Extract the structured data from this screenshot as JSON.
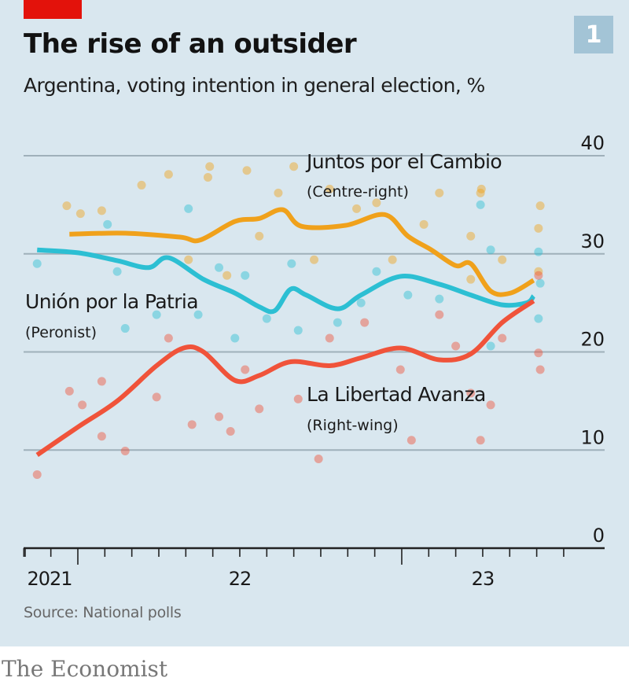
{
  "header": {
    "title": "The rise of an outsider",
    "subtitle": "Argentina, voting intention in general election, %",
    "badge": "1"
  },
  "footer": {
    "source": "Source: National polls",
    "brand": "The Economist"
  },
  "colors": {
    "background": "#d9e7ef",
    "accent_bar": "#e3120b",
    "badge": "#a3c4d6",
    "juntos": "#f0a11b",
    "union": "#2cbfd3",
    "libertad": "#f0533a"
  },
  "chart_data": {
    "type": "line",
    "title": "The rise of an outsider",
    "subtitle": "Argentina, voting intention in general election, %",
    "xlabel": "",
    "ylabel": "",
    "ylim": [
      0,
      40
    ],
    "yticks": [
      0,
      10,
      20,
      30,
      40
    ],
    "xlim": [
      "2021-11-01",
      "2023-07-20"
    ],
    "xtick_labels": [
      {
        "label": "2021",
        "date": "2021-11-30"
      },
      {
        "label": "22",
        "date": "2022-07-01"
      },
      {
        "label": "23",
        "date": "2023-04-01"
      }
    ],
    "grid": true,
    "series": [
      {
        "name": "Juntos por el Cambio",
        "note": "(Centre-right)",
        "color": "#f0a11b",
        "line": [
          [
            "2021-12-22",
            32.0
          ],
          [
            "2022-02-24",
            32.1
          ],
          [
            "2022-04-25",
            31.7
          ],
          [
            "2022-05-17",
            31.4
          ],
          [
            "2022-06-26",
            33.3
          ],
          [
            "2022-07-23",
            33.6
          ],
          [
            "2022-08-19",
            34.5
          ],
          [
            "2022-09-10",
            32.8
          ],
          [
            "2022-10-29",
            32.9
          ],
          [
            "2022-12-12",
            34.0
          ],
          [
            "2023-01-08",
            31.8
          ],
          [
            "2023-02-04",
            30.4
          ],
          [
            "2023-03-01",
            28.8
          ],
          [
            "2023-03-18",
            29.0
          ],
          [
            "2023-04-10",
            26.2
          ],
          [
            "2023-05-02",
            26.0
          ],
          [
            "2023-05-28",
            27.3
          ]
        ],
        "polls": [
          [
            "2021-12-19",
            34.9
          ],
          [
            "2022-01-04",
            34.1
          ],
          [
            "2022-01-28",
            34.4
          ],
          [
            "2022-03-12",
            37.0
          ],
          [
            "2022-04-12",
            38.1
          ],
          [
            "2022-05-26",
            37.8
          ],
          [
            "2022-05-28",
            38.9
          ],
          [
            "2022-07-09",
            38.5
          ],
          [
            "2022-08-14",
            36.2
          ],
          [
            "2022-09-01",
            38.9
          ],
          [
            "2022-10-11",
            36.6
          ],
          [
            "2022-11-11",
            34.6
          ],
          [
            "2022-12-03",
            35.2
          ],
          [
            "2023-01-26",
            33.0
          ],
          [
            "2023-02-13",
            36.2
          ],
          [
            "2023-03-29",
            36.2
          ],
          [
            "2023-03-30",
            36.6
          ],
          [
            "2023-03-18",
            31.8
          ],
          [
            "2023-04-23",
            29.4
          ],
          [
            "2023-06-03",
            32.6
          ],
          [
            "2023-06-05",
            34.9
          ],
          [
            "2023-06-03",
            28.2
          ],
          [
            "2023-03-18",
            27.4
          ],
          [
            "2022-09-24",
            29.4
          ],
          [
            "2022-05-04",
            29.4
          ],
          [
            "2022-06-17",
            27.8
          ],
          [
            "2022-07-23",
            31.8
          ],
          [
            "2022-12-21",
            29.4
          ]
        ]
      },
      {
        "name": "Unión por la Patria",
        "note": "(Peronist)",
        "color": "#2cbfd3",
        "line": [
          [
            "2021-11-16",
            30.4
          ],
          [
            "2022-01-02",
            30.1
          ],
          [
            "2022-02-15",
            29.3
          ],
          [
            "2022-03-20",
            28.6
          ],
          [
            "2022-04-12",
            29.6
          ],
          [
            "2022-05-21",
            27.4
          ],
          [
            "2022-06-26",
            26.0
          ],
          [
            "2022-07-23",
            24.6
          ],
          [
            "2022-08-10",
            24.2
          ],
          [
            "2022-08-28",
            26.4
          ],
          [
            "2022-09-15",
            25.8
          ],
          [
            "2022-10-20",
            24.4
          ],
          [
            "2022-11-16",
            25.8
          ],
          [
            "2022-12-30",
            27.7
          ],
          [
            "2023-02-13",
            26.9
          ],
          [
            "2023-03-18",
            25.8
          ],
          [
            "2023-04-23",
            24.8
          ],
          [
            "2023-05-20",
            25.0
          ],
          [
            "2023-05-28",
            25.7
          ]
        ],
        "polls": [
          [
            "2021-11-16",
            29.0
          ],
          [
            "2022-02-15",
            28.2
          ],
          [
            "2022-02-04",
            33.0
          ],
          [
            "2022-05-04",
            34.6
          ],
          [
            "2022-06-08",
            28.6
          ],
          [
            "2022-07-07",
            27.8
          ],
          [
            "2022-06-26",
            21.4
          ],
          [
            "2022-05-15",
            23.8
          ],
          [
            "2022-08-01",
            23.4
          ],
          [
            "2022-09-06",
            22.2
          ],
          [
            "2022-10-20",
            23.0
          ],
          [
            "2022-11-16",
            25.0
          ],
          [
            "2023-01-08",
            25.8
          ],
          [
            "2023-02-13",
            25.4
          ],
          [
            "2023-03-29",
            35.0
          ],
          [
            "2023-04-10",
            30.4
          ],
          [
            "2023-04-10",
            20.6
          ],
          [
            "2023-06-03",
            30.2
          ],
          [
            "2023-06-05",
            27.0
          ],
          [
            "2023-06-03",
            23.4
          ],
          [
            "2022-03-29",
            23.8
          ],
          [
            "2022-08-29",
            29.0
          ],
          [
            "2022-12-03",
            28.2
          ],
          [
            "2022-02-24",
            22.4
          ]
        ]
      },
      {
        "name": "La Libertad Avanza",
        "note": "(Right-wing)",
        "color": "#f0533a",
        "line": [
          [
            "2021-11-16",
            9.5
          ],
          [
            "2022-01-02",
            12.4
          ],
          [
            "2022-02-15",
            15.0
          ],
          [
            "2022-03-29",
            18.6
          ],
          [
            "2022-04-29",
            20.4
          ],
          [
            "2022-05-21",
            20.0
          ],
          [
            "2022-06-26",
            17.1
          ],
          [
            "2022-07-23",
            17.6
          ],
          [
            "2022-08-28",
            19.0
          ],
          [
            "2022-10-11",
            18.6
          ],
          [
            "2022-11-16",
            19.4
          ],
          [
            "2022-12-30",
            20.4
          ],
          [
            "2023-02-13",
            19.2
          ],
          [
            "2023-03-18",
            19.8
          ],
          [
            "2023-04-23",
            23.0
          ],
          [
            "2023-05-28",
            25.2
          ]
        ],
        "polls": [
          [
            "2021-11-16",
            7.5
          ],
          [
            "2021-12-22",
            16.0
          ],
          [
            "2022-01-06",
            14.6
          ],
          [
            "2022-01-28",
            17.0
          ],
          [
            "2022-01-28",
            11.4
          ],
          [
            "2022-02-24",
            9.9
          ],
          [
            "2022-03-29",
            15.4
          ],
          [
            "2022-04-12",
            21.4
          ],
          [
            "2022-05-08",
            12.6
          ],
          [
            "2022-06-08",
            13.4
          ],
          [
            "2022-06-21",
            11.9
          ],
          [
            "2022-07-07",
            18.2
          ],
          [
            "2022-07-23",
            14.2
          ],
          [
            "2022-09-06",
            15.2
          ],
          [
            "2022-09-29",
            9.1
          ],
          [
            "2022-10-11",
            21.4
          ],
          [
            "2022-11-20",
            23.0
          ],
          [
            "2022-12-30",
            18.2
          ],
          [
            "2023-01-12",
            11.0
          ],
          [
            "2023-02-13",
            23.8
          ],
          [
            "2023-03-01",
            20.6
          ],
          [
            "2023-03-29",
            11.0
          ],
          [
            "2023-04-10",
            14.6
          ],
          [
            "2023-04-23",
            21.4
          ],
          [
            "2023-06-03",
            27.8
          ],
          [
            "2023-06-03",
            19.9
          ],
          [
            "2023-06-05",
            18.2
          ],
          [
            "2023-03-18",
            15.8
          ]
        ]
      }
    ]
  }
}
